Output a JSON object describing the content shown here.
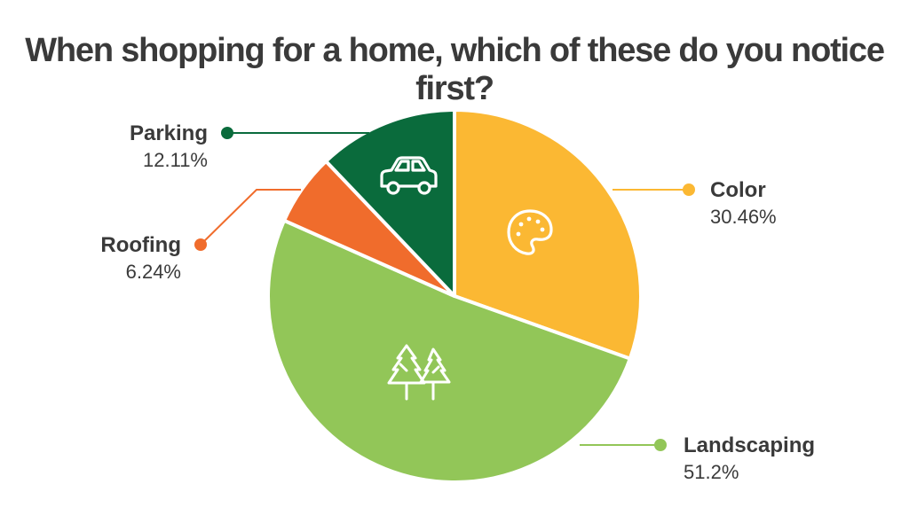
{
  "chart_data": {
    "type": "pie",
    "title": "When shopping for a home, which of these do you notice first?",
    "start_angle_deg": 0,
    "direction": "clockwise",
    "slices": [
      {
        "label": "Color",
        "value": 30.46,
        "value_label": "30.46%",
        "color": "#FBB833",
        "icon": "palette-icon"
      },
      {
        "label": "Landscaping",
        "value": 51.2,
        "value_label": "51.2%",
        "color": "#92C658",
        "icon": "trees-icon"
      },
      {
        "label": "Roofing",
        "value": 6.24,
        "value_label": "6.24%",
        "color": "#F06C2C",
        "icon": ""
      },
      {
        "label": "Parking",
        "value": 12.11,
        "value_label": "12.11%",
        "color": "#0A6B3C",
        "icon": "car-icon"
      }
    ],
    "legend": "callouts"
  }
}
